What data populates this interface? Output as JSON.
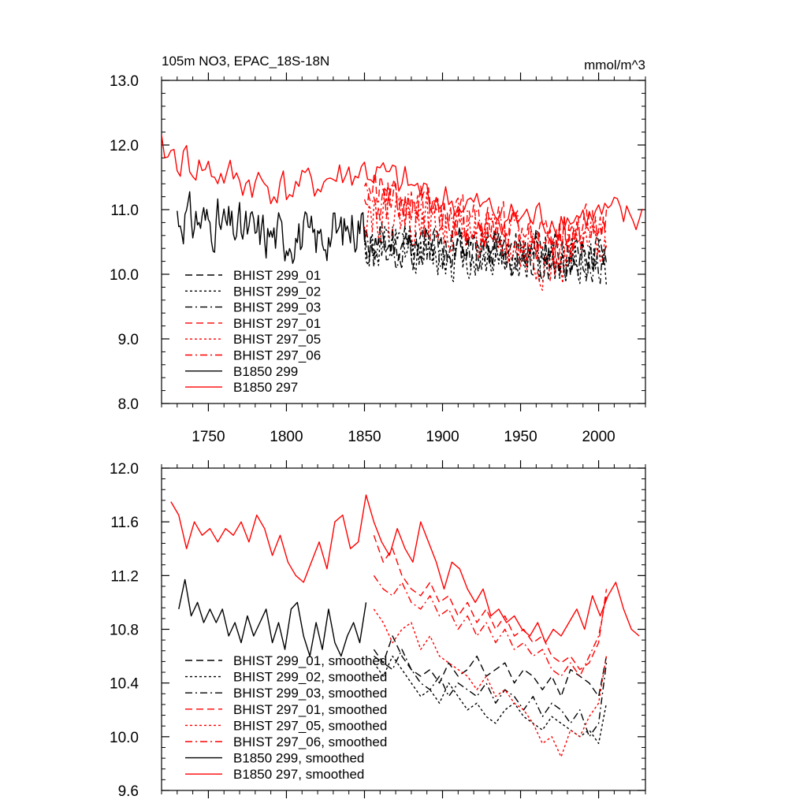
{
  "chart_data": [
    {
      "type": "line",
      "title": "105m NO3, EPAC_18S-18N",
      "units": "mmol/m^3",
      "xlim": [
        1720,
        2030
      ],
      "ylim": [
        8.0,
        13.0
      ],
      "x_ticks": [
        1750,
        1800,
        1850,
        1900,
        1950,
        2000
      ],
      "x_tick_labels": [
        "1750",
        "1800",
        "1850",
        "1900",
        "1950",
        "2000"
      ],
      "y_ticks": [
        8.0,
        9.0,
        10.0,
        11.0,
        12.0,
        13.0
      ],
      "y_tick_labels": [
        "8.0",
        "9.0",
        "10.0",
        "11.0",
        "12.0",
        "13.0"
      ],
      "legend_position": "bottom-left",
      "series": [
        {
          "name": "BHIST 299_01",
          "color": "#000000",
          "dash": "dash",
          "x_range": [
            1850,
            2005
          ],
          "mean": 10.35,
          "amp": 0.5,
          "seed": 11,
          "step": 1,
          "anchors": [
            [
              1850,
              10.45
            ],
            [
              1900,
              10.45
            ],
            [
              1950,
              10.35
            ],
            [
              2005,
              10.3
            ]
          ]
        },
        {
          "name": "BHIST 299_02",
          "color": "#000000",
          "dash": "dot",
          "x_range": [
            1850,
            2005
          ],
          "mean": 10.25,
          "amp": 0.55,
          "seed": 12,
          "step": 1,
          "anchors": [
            [
              1850,
              10.4
            ],
            [
              1900,
              10.3
            ],
            [
              1950,
              10.25
            ],
            [
              2005,
              10.2
            ]
          ]
        },
        {
          "name": "BHIST 299_03",
          "color": "#000000",
          "dash": "dashdot",
          "x_range": [
            1850,
            2005
          ],
          "mean": 10.3,
          "amp": 0.5,
          "seed": 13,
          "step": 1,
          "anchors": [
            [
              1850,
              10.45
            ],
            [
              1900,
              10.4
            ],
            [
              1950,
              10.3
            ],
            [
              2005,
              10.2
            ]
          ]
        },
        {
          "name": "BHIST 297_01",
          "color": "#ff0000",
          "dash": "dash",
          "x_range": [
            1850,
            2005
          ],
          "mean": 10.8,
          "amp": 0.5,
          "seed": 21,
          "step": 1,
          "anchors": [
            [
              1850,
              11.3
            ],
            [
              1890,
              11.0
            ],
            [
              1930,
              10.8
            ],
            [
              1970,
              10.55
            ],
            [
              2005,
              10.9
            ]
          ]
        },
        {
          "name": "BHIST 297_05",
          "color": "#ff0000",
          "dash": "dot",
          "x_range": [
            1850,
            2005
          ],
          "mean": 10.6,
          "amp": 0.55,
          "seed": 22,
          "step": 1,
          "anchors": [
            [
              1850,
              11.0
            ],
            [
              1890,
              10.85
            ],
            [
              1930,
              10.55
            ],
            [
              1970,
              10.1
            ],
            [
              2005,
              10.6
            ]
          ]
        },
        {
          "name": "BHIST 297_06",
          "color": "#ff0000",
          "dash": "dashdot",
          "x_range": [
            1850,
            2005
          ],
          "mean": 10.75,
          "amp": 0.5,
          "seed": 23,
          "step": 1,
          "anchors": [
            [
              1850,
              11.1
            ],
            [
              1890,
              10.95
            ],
            [
              1930,
              10.75
            ],
            [
              1970,
              10.45
            ],
            [
              2005,
              10.8
            ]
          ]
        },
        {
          "name": "B1850 299",
          "color": "#000000",
          "dash": "solid",
          "x_range": [
            1730,
            1850
          ],
          "mean": 10.6,
          "amp": 0.55,
          "seed": 31,
          "step": 1,
          "anchors": [
            [
              1730,
              10.9
            ],
            [
              1760,
              10.75
            ],
            [
              1790,
              10.6
            ],
            [
              1820,
              10.55
            ],
            [
              1850,
              10.8
            ]
          ]
        },
        {
          "name": "B1850 297",
          "color": "#ff0000",
          "dash": "solid",
          "x_range": [
            1720,
            2028
          ],
          "mean": 11.2,
          "amp": 0.45,
          "seed": 41,
          "step": 2,
          "anchors": [
            [
              1720,
              11.9
            ],
            [
              1760,
              11.5
            ],
            [
              1800,
              11.3
            ],
            [
              1850,
              11.6
            ],
            [
              1900,
              11.15
            ],
            [
              1950,
              10.85
            ],
            [
              2000,
              10.9
            ],
            [
              2028,
              10.85
            ]
          ]
        }
      ]
    },
    {
      "type": "line",
      "xlim": [
        1720,
        2030
      ],
      "ylim": [
        9.6,
        12.0
      ],
      "x_ticks": [
        1750,
        1800,
        1850,
        1900,
        1950,
        2000
      ],
      "y_ticks": [
        9.6,
        10.0,
        10.4,
        10.8,
        11.2,
        11.6,
        12.0
      ],
      "y_tick_labels": [
        "9.6",
        "10.0",
        "10.4",
        "10.8",
        "11.2",
        "11.6",
        "12.0"
      ],
      "legend_position": "bottom-left",
      "series": [
        {
          "name": "BHIST 299_01, smoothed",
          "color": "#000000",
          "dash": "dash",
          "x": [
            1856,
            1862,
            1868,
            1874,
            1880,
            1886,
            1892,
            1898,
            1904,
            1910,
            1916,
            1922,
            1928,
            1934,
            1940,
            1946,
            1952,
            1958,
            1964,
            1970,
            1976,
            1982,
            1988,
            1994,
            2000,
            2005
          ],
          "y": [
            10.65,
            10.55,
            10.75,
            10.6,
            10.5,
            10.45,
            10.5,
            10.4,
            10.55,
            10.45,
            10.5,
            10.6,
            10.45,
            10.5,
            10.55,
            10.4,
            10.5,
            10.45,
            10.35,
            10.45,
            10.3,
            10.5,
            10.45,
            10.4,
            10.3,
            10.6
          ]
        },
        {
          "name": "BHIST 299_02, smoothed",
          "color": "#000000",
          "dash": "dot",
          "x": [
            1856,
            1862,
            1868,
            1874,
            1880,
            1886,
            1892,
            1898,
            1904,
            1910,
            1916,
            1922,
            1928,
            1934,
            1940,
            1946,
            1952,
            1958,
            1964,
            1970,
            1976,
            1982,
            1988,
            1994,
            2000,
            2005
          ],
          "y": [
            10.55,
            10.45,
            10.6,
            10.5,
            10.4,
            10.3,
            10.35,
            10.25,
            10.4,
            10.3,
            10.2,
            10.25,
            10.15,
            10.1,
            10.2,
            10.25,
            10.15,
            10.1,
            10.05,
            10.15,
            10.1,
            10.05,
            10.0,
            10.05,
            9.95,
            10.25
          ]
        },
        {
          "name": "BHIST 299_03, smoothed",
          "color": "#000000",
          "dash": "dashdot",
          "x": [
            1856,
            1862,
            1868,
            1874,
            1880,
            1886,
            1892,
            1898,
            1904,
            1910,
            1916,
            1922,
            1928,
            1934,
            1940,
            1946,
            1952,
            1958,
            1964,
            1970,
            1976,
            1982,
            1988,
            1994,
            2000,
            2005
          ],
          "y": [
            10.6,
            10.55,
            10.5,
            10.65,
            10.5,
            10.4,
            10.35,
            10.45,
            10.3,
            10.4,
            10.35,
            10.3,
            10.4,
            10.25,
            10.35,
            10.3,
            10.2,
            10.3,
            10.15,
            10.25,
            10.2,
            10.1,
            10.2,
            10.0,
            10.1,
            10.55
          ]
        },
        {
          "name": "BHIST 297_01, smoothed",
          "color": "#ff0000",
          "dash": "dash",
          "x": [
            1856,
            1862,
            1868,
            1874,
            1880,
            1886,
            1892,
            1898,
            1904,
            1910,
            1916,
            1922,
            1928,
            1934,
            1940,
            1946,
            1952,
            1958,
            1964,
            1970,
            1976,
            1982,
            1988,
            1994,
            2000,
            2005
          ],
          "y": [
            11.5,
            11.3,
            11.4,
            11.2,
            11.1,
            11.05,
            11.15,
            11.0,
            11.05,
            10.9,
            11.0,
            10.85,
            10.95,
            10.8,
            10.9,
            10.75,
            10.8,
            10.7,
            10.75,
            10.6,
            10.55,
            10.6,
            10.5,
            10.55,
            10.7,
            11.1
          ]
        },
        {
          "name": "BHIST 297_05, smoothed",
          "color": "#ff0000",
          "dash": "dot",
          "x": [
            1856,
            1862,
            1868,
            1874,
            1880,
            1886,
            1892,
            1898,
            1904,
            1910,
            1916,
            1922,
            1928,
            1934,
            1940,
            1946,
            1952,
            1958,
            1964,
            1970,
            1976,
            1982,
            1988,
            1994,
            2000,
            2005
          ],
          "y": [
            10.95,
            10.85,
            10.7,
            10.8,
            10.85,
            10.65,
            10.75,
            10.6,
            10.55,
            10.5,
            10.45,
            10.35,
            10.45,
            10.3,
            10.35,
            10.25,
            10.2,
            10.1,
            9.95,
            10.0,
            9.85,
            10.05,
            10.0,
            10.15,
            10.25,
            10.6
          ]
        },
        {
          "name": "BHIST 297_06, smoothed",
          "color": "#ff0000",
          "dash": "dashdot",
          "x": [
            1856,
            1862,
            1868,
            1874,
            1880,
            1886,
            1892,
            1898,
            1904,
            1910,
            1916,
            1922,
            1928,
            1934,
            1940,
            1946,
            1952,
            1958,
            1964,
            1970,
            1976,
            1982,
            1988,
            1994,
            2000,
            2005
          ],
          "y": [
            11.2,
            11.1,
            11.05,
            11.15,
            11.0,
            10.95,
            11.05,
            10.9,
            10.95,
            10.8,
            10.9,
            10.75,
            10.85,
            10.7,
            10.8,
            10.65,
            10.7,
            10.6,
            10.65,
            10.5,
            10.45,
            10.55,
            10.45,
            10.6,
            10.75,
            11.05
          ]
        },
        {
          "name": "B1850 299, smoothed",
          "color": "#000000",
          "dash": "solid",
          "x": [
            1731,
            1735,
            1739,
            1743,
            1747,
            1751,
            1755,
            1759,
            1763,
            1767,
            1771,
            1775,
            1779,
            1783,
            1787,
            1791,
            1795,
            1799,
            1803,
            1807,
            1811,
            1815,
            1819,
            1823,
            1827,
            1831,
            1835,
            1839,
            1843,
            1847,
            1851
          ],
          "y": [
            10.95,
            11.17,
            10.9,
            11.0,
            10.85,
            10.95,
            10.85,
            10.95,
            10.75,
            10.85,
            10.7,
            10.9,
            10.75,
            10.85,
            10.95,
            10.7,
            10.85,
            10.65,
            10.95,
            11.0,
            10.75,
            10.6,
            10.85,
            10.65,
            10.95,
            10.7,
            10.6,
            10.75,
            10.85,
            10.7,
            11.0
          ]
        },
        {
          "name": "B1850 297, smoothed",
          "color": "#ff0000",
          "dash": "solid",
          "x": [
            1726,
            1731,
            1736,
            1741,
            1746,
            1751,
            1756,
            1761,
            1766,
            1771,
            1776,
            1781,
            1786,
            1791,
            1796,
            1801,
            1806,
            1811,
            1816,
            1821,
            1826,
            1831,
            1836,
            1841,
            1846,
            1851,
            1856,
            1861,
            1866,
            1871,
            1876,
            1881,
            1886,
            1891,
            1896,
            1901,
            1906,
            1911,
            1916,
            1921,
            1926,
            1931,
            1936,
            1941,
            1946,
            1951,
            1956,
            1961,
            1966,
            1971,
            1976,
            1981,
            1986,
            1991,
            1996,
            2001,
            2006,
            2011,
            2016,
            2021,
            2026
          ],
          "y": [
            11.75,
            11.65,
            11.4,
            11.6,
            11.5,
            11.55,
            11.45,
            11.55,
            11.5,
            11.6,
            11.45,
            11.65,
            11.55,
            11.35,
            11.5,
            11.3,
            11.2,
            11.15,
            11.3,
            11.45,
            11.25,
            11.6,
            11.65,
            11.4,
            11.45,
            11.8,
            11.6,
            11.45,
            11.35,
            11.55,
            11.4,
            11.3,
            11.6,
            11.45,
            11.3,
            11.1,
            11.3,
            11.25,
            11.1,
            11.0,
            11.1,
            10.9,
            10.95,
            10.85,
            10.9,
            10.8,
            10.75,
            10.85,
            10.7,
            10.8,
            10.75,
            10.85,
            10.95,
            10.8,
            11.05,
            10.9,
            11.05,
            11.15,
            10.95,
            10.8,
            10.75
          ]
        }
      ]
    }
  ]
}
